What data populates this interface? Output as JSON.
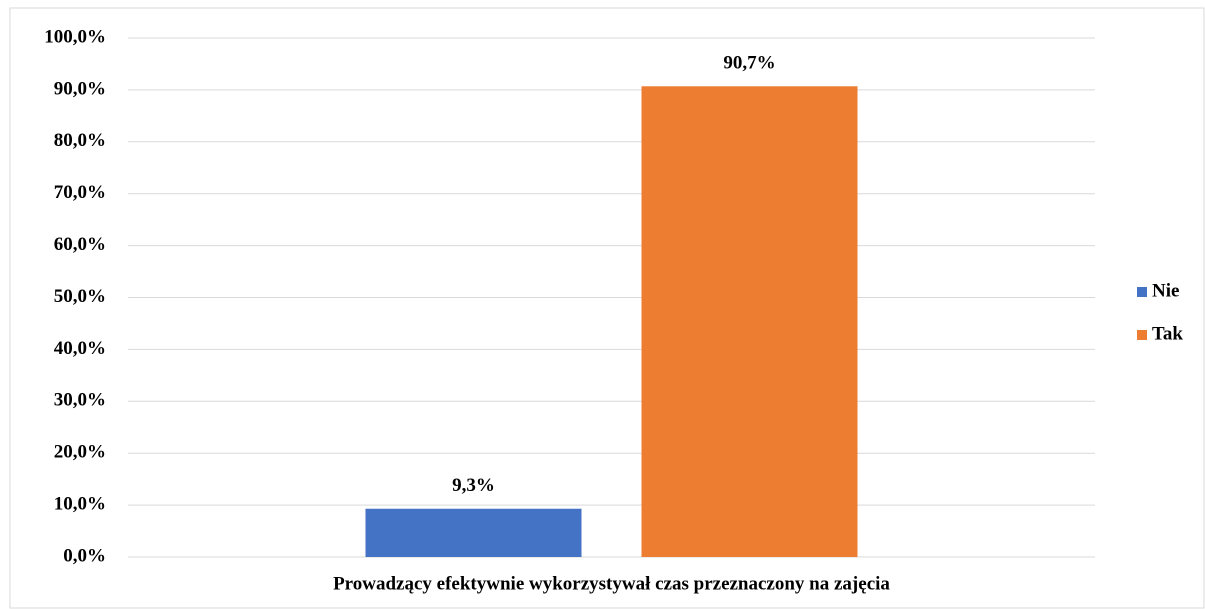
{
  "chart_data": {
    "type": "bar",
    "categories": [
      "Prowadzący efektywnie wykorzystywał czas przeznaczony na zajęcia"
    ],
    "series": [
      {
        "name": "Nie",
        "color": "#4472c4",
        "values": [
          9.3
        ],
        "value_labels": [
          "9,3%"
        ]
      },
      {
        "name": "Tak",
        "color": "#ed7d31",
        "values": [
          90.7
        ],
        "value_labels": [
          "90,7%"
        ]
      }
    ],
    "ylim": [
      0,
      100
    ],
    "yticks": [
      {
        "value": 0,
        "label": "0,0%"
      },
      {
        "value": 10,
        "label": "10,0%"
      },
      {
        "value": 20,
        "label": "20,0%"
      },
      {
        "value": 30,
        "label": "30,0%"
      },
      {
        "value": 40,
        "label": "40,0%"
      },
      {
        "value": 50,
        "label": "50,0%"
      },
      {
        "value": 60,
        "label": "60,0%"
      },
      {
        "value": 70,
        "label": "70,0%"
      },
      {
        "value": 80,
        "label": "80,0%"
      },
      {
        "value": 90,
        "label": "90,0%"
      },
      {
        "value": 100,
        "label": "100,0%"
      }
    ],
    "grid": true,
    "legend": "right"
  }
}
